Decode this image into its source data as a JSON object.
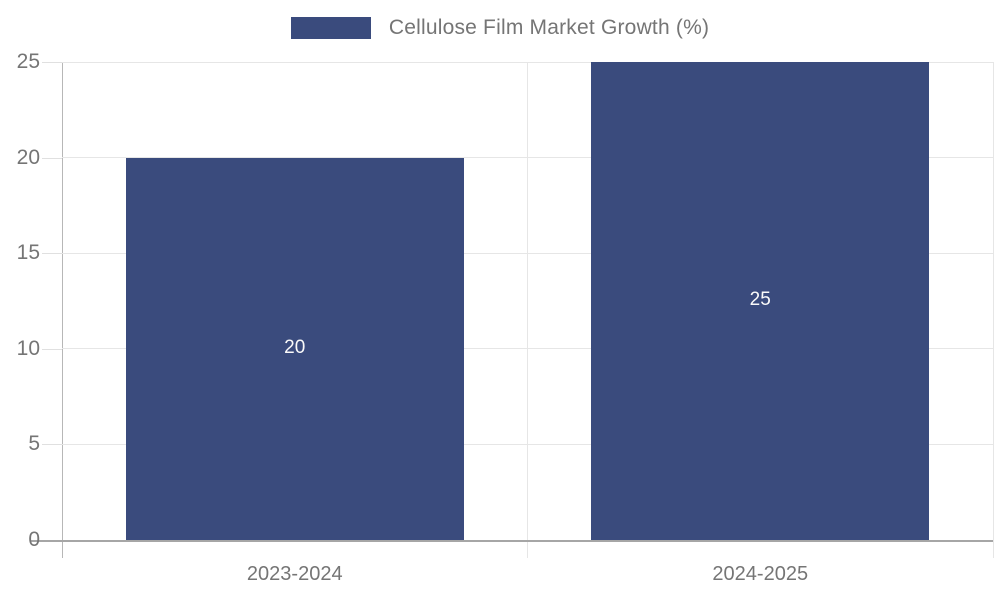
{
  "chart_data": {
    "type": "bar",
    "title": "",
    "legend": "Cellulose Film Market Growth (%)",
    "legend_position": "top-center",
    "categories": [
      "2023-2024",
      "2024-2025"
    ],
    "values": [
      20,
      25
    ],
    "value_labels": [
      "20",
      "25"
    ],
    "xlabel": "",
    "ylabel": "",
    "ylim": [
      0,
      25
    ],
    "yticks": [
      0,
      5,
      10,
      15,
      20,
      25
    ],
    "grid": true,
    "colors": {
      "bar": "#3a4b7d",
      "bar_value_text": "#fafafa",
      "axis_text": "#757575",
      "gridline": "#e6e6e6",
      "axis_line": "#a6a6a6"
    }
  }
}
